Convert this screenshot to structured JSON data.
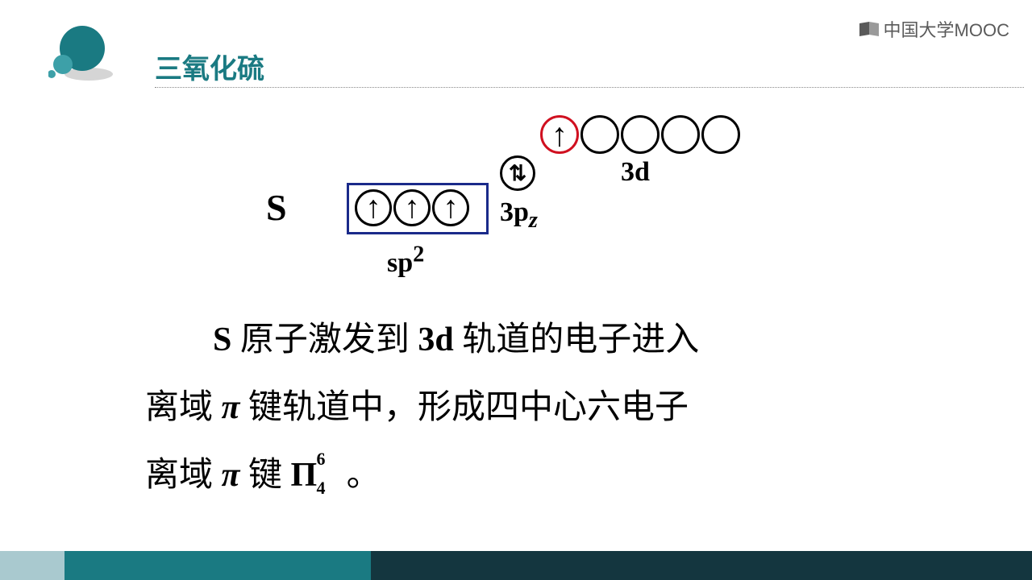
{
  "colors": {
    "teal": "#1a7a82",
    "teal_light": "#3da0a8",
    "footer_dark": "#14363f",
    "footer_mid": "#1a7a82",
    "footer_light": "#a9c9cf",
    "box_border": "#1a2a8a",
    "red_orbital": "#d01020",
    "black": "#000000",
    "gray_text": "#5a5a5a",
    "dot_color": "#888888",
    "shadow": "#d5d5d5"
  },
  "header": {
    "title": "三氧化硫",
    "logo_text": "中国大学MOOC"
  },
  "diagram": {
    "atom_label": "S",
    "sp2_box": {
      "label_html": "sp<sup>2</sup>",
      "orbitals": [
        {
          "arrow": "↑",
          "ring": "#000"
        },
        {
          "arrow": "↑",
          "ring": "#000"
        },
        {
          "arrow": "↑",
          "ring": "#000"
        }
      ],
      "orbital_size": 46
    },
    "pz": {
      "label_html": "3p<sub><i>z</i></sub>",
      "orbital": {
        "arrow": "⇅",
        "ring": "#000"
      },
      "orbital_size": 44
    },
    "three_d": {
      "label": "3d",
      "orbital_size": 48,
      "orbitals": [
        {
          "arrow": "↑",
          "ring": "#d01020"
        },
        {
          "arrow": "",
          "ring": "#000"
        },
        {
          "arrow": "",
          "ring": "#000"
        },
        {
          "arrow": "",
          "ring": "#000"
        },
        {
          "arrow": "",
          "ring": "#000"
        }
      ]
    }
  },
  "body": {
    "line1_a": "S",
    "line1_b": " 原子激发到 ",
    "line1_c": "3d",
    "line1_d": " 轨道的电子进入",
    "line2_a": "离域 ",
    "line2_b": "π",
    "line2_c": " 键轨道中，形成四中心六电子",
    "line3_a": "离域 ",
    "line3_b": "π",
    "line3_c": " 键 ",
    "pi_sym": "Π",
    "pi_sup": "6",
    "pi_sub": "4",
    "line3_end": " 。"
  },
  "footer": {
    "seg_widths": [
      80,
      380,
      820
    ]
  }
}
